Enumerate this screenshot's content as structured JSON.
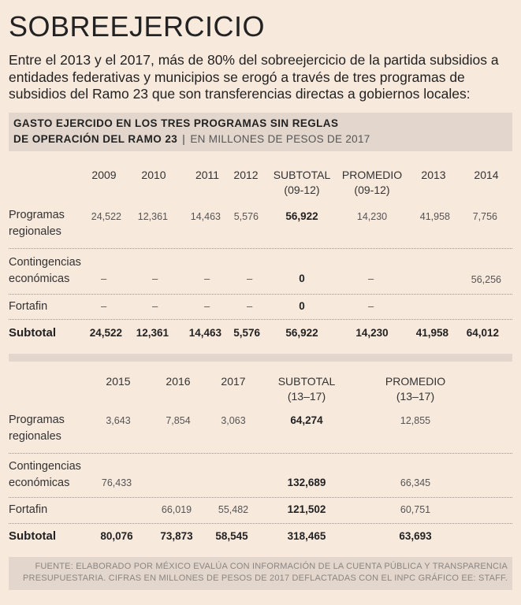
{
  "title": "SOBREEJERCICIO",
  "intro": "Entre el 2013 y el 2017, más de 80% del sobreejercicio de la partida subsidios a entidades federativas y municipios se erogó a través de tres programas de subsidios del Ramo 23 que son transferencias directas a gobiernos locales:",
  "table_title": {
    "line1": "GASTO EJERCIDO EN LOS TRES PROGRAMAS SIN REGLAS",
    "line2": "DE OPERACIÓN DEL RAMO 23",
    "separator": "|",
    "units": "EN MILLONES DE PESOS DE 2017"
  },
  "table1": {
    "headers": {
      "y2009": "2009",
      "y2010": "2010",
      "y2011": "2011",
      "y2012": "2012",
      "subtotal_l1": "SUBTOTAL",
      "subtotal_l2": "(09-12)",
      "promedio_l1": "PROMEDIO",
      "promedio_l2": "(09-12)",
      "y2013": "2013",
      "y2014": "2014"
    },
    "rows": {
      "regionales": {
        "label_l1": "Programas",
        "label_l2": "regionales",
        "y2009": "24,522",
        "y2010": "12,361",
        "y2011": "14,463",
        "y2012": "5,576",
        "subtotal": "56,922",
        "promedio": "14,230",
        "y2013": "41,958",
        "y2014": "7,756"
      },
      "contingencias": {
        "label_l1": "Contingencias",
        "label_l2": "económicas",
        "y2009": "–",
        "y2010": "–",
        "y2011": "–",
        "y2012": "–",
        "subtotal": "0",
        "promedio": "–",
        "y2013": "",
        "y2014": "56,256"
      },
      "fortafin": {
        "label_l1": "Fortafin",
        "y2009": "–",
        "y2010": "–",
        "y2011": "–",
        "y2012": "–",
        "subtotal": "0",
        "promedio": "–",
        "y2013": "",
        "y2014": ""
      },
      "subtotal": {
        "label_l1": "Subtotal",
        "y2009": "24,522",
        "y2010": "12,361",
        "y2011": "14,463",
        "y2012": "5,576",
        "subtotal": "56,922",
        "promedio": "14,230",
        "y2013": "41,958",
        "y2014": "64,012"
      }
    }
  },
  "table2": {
    "headers": {
      "y2015": "2015",
      "y2016": "2016",
      "y2017": "2017",
      "subtotal_l1": "SUBTOTAL",
      "subtotal_l2": "(13–17)",
      "promedio_l1": "PROMEDIO",
      "promedio_l2": "(13–17)"
    },
    "rows": {
      "regionales": {
        "label_l1": "Programas",
        "label_l2": "regionales",
        "y2015": "3,643",
        "y2016": "7,854",
        "y2017": "3,063",
        "subtotal": "64,274",
        "promedio": "12,855"
      },
      "contingencias": {
        "label_l1": "Contingencias",
        "label_l2": "económicas",
        "y2015": "76,433",
        "y2016": "",
        "y2017": "",
        "subtotal": "132,689",
        "promedio": "66,345"
      },
      "fortafin": {
        "label_l1": "Fortafin",
        "y2015": "",
        "y2016": "66,019",
        "y2017": "55,482",
        "subtotal": "121,502",
        "promedio": "60,751"
      },
      "subtotal": {
        "label_l1": "Subtotal",
        "y2015": "80,076",
        "y2016": "73,873",
        "y2017": "58,545",
        "subtotal": "318,465",
        "promedio": "63,693"
      }
    }
  },
  "source": {
    "line1": "FUENTE: ELABORADO POR MÉXICO EVALÚA CON INFORMACIÓN DE LA CUENTA PÚBLICA Y TRANSPARENCIA",
    "line2": "PRESUPUESTARIA. CIFRAS EN MILLONES DE PESOS DE 2017 DEFLACTADAS CON EL INPC GRÁFICO EE: STAFF."
  }
}
